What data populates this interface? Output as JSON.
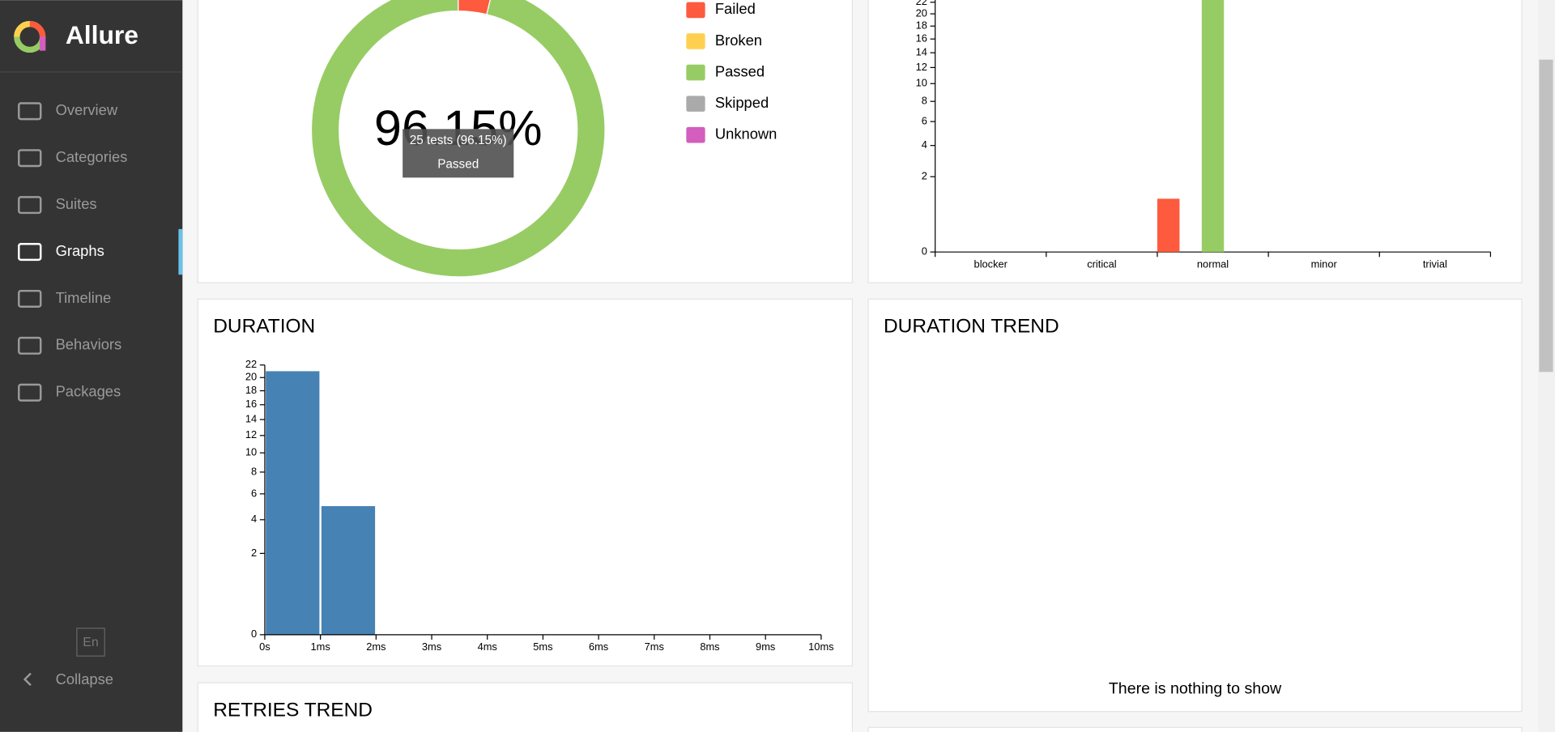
{
  "sidebar": {
    "brand": "Allure",
    "nav": [
      "Overview",
      "Categories",
      "Suites",
      "Graphs",
      "Timeline",
      "Behaviors",
      "Packages"
    ],
    "active": 3,
    "language": "En",
    "collapse": "Collapse"
  },
  "chart_data": [
    {
      "type": "pie",
      "categories": [
        "Failed",
        "Broken",
        "Passed",
        "Skipped",
        "Unknown"
      ],
      "values": [
        1,
        0,
        25,
        0,
        0
      ],
      "colors": [
        "#fd5a3e",
        "#ffd050",
        "#97cc64",
        "#aaaaaa",
        "#d35ebe"
      ],
      "center_label": "96.15%",
      "tooltip": {
        "text": "25 tests (96.15%)",
        "label": "Passed"
      }
    },
    {
      "type": "bar",
      "scale": "sqrt",
      "categories": [
        "blocker",
        "critical",
        "normal",
        "minor",
        "trivial"
      ],
      "series": [
        {
          "color": "#fd5a3e",
          "values": [
            0,
            0,
            1,
            0,
            0
          ]
        },
        {
          "color": "#ffd050",
          "values": [
            0,
            0,
            0,
            0,
            0
          ]
        },
        {
          "color": "#97cc64",
          "values": [
            0,
            0,
            25,
            0,
            0
          ]
        },
        {
          "color": "#aaaaaa",
          "values": [
            0,
            0,
            0,
            0,
            0
          ]
        },
        {
          "color": "#d35ebe",
          "values": [
            0,
            0,
            0,
            0,
            0
          ]
        }
      ],
      "ylim": [
        0,
        25
      ],
      "yticks": [
        0,
        2,
        4,
        6,
        8,
        10,
        12,
        14,
        16,
        18,
        20,
        22
      ]
    },
    {
      "type": "histogram",
      "title": "DURATION",
      "scale": "sqrt",
      "bins": [
        0,
        1,
        2,
        3,
        4,
        5,
        6,
        7,
        8,
        9,
        10
      ],
      "values": [
        21,
        5,
        0,
        0,
        0,
        0,
        0,
        0,
        0,
        0
      ],
      "color": "#4682b4",
      "xlim": [
        0,
        10
      ],
      "xticks": [
        {
          "value": 0,
          "label": "0s"
        },
        {
          "value": 1,
          "label": "1ms"
        },
        {
          "value": 2,
          "label": "2ms"
        },
        {
          "value": 3,
          "label": "3ms"
        },
        {
          "value": 4,
          "label": "4ms"
        },
        {
          "value": 5,
          "label": "5ms"
        },
        {
          "value": 6,
          "label": "6ms"
        },
        {
          "value": 7,
          "label": "7ms"
        },
        {
          "value": 8,
          "label": "8ms"
        },
        {
          "value": 9,
          "label": "9ms"
        },
        {
          "value": 10,
          "label": "10ms"
        }
      ],
      "ylim": [
        0,
        22
      ],
      "yticks": [
        0,
        2,
        4,
        6,
        8,
        10,
        12,
        14,
        16,
        18,
        20,
        22
      ]
    }
  ],
  "duration_trend": {
    "title": "DURATION TREND",
    "empty": "There is nothing to show"
  },
  "retries_trend": {
    "title": "RETRIES TREND"
  }
}
